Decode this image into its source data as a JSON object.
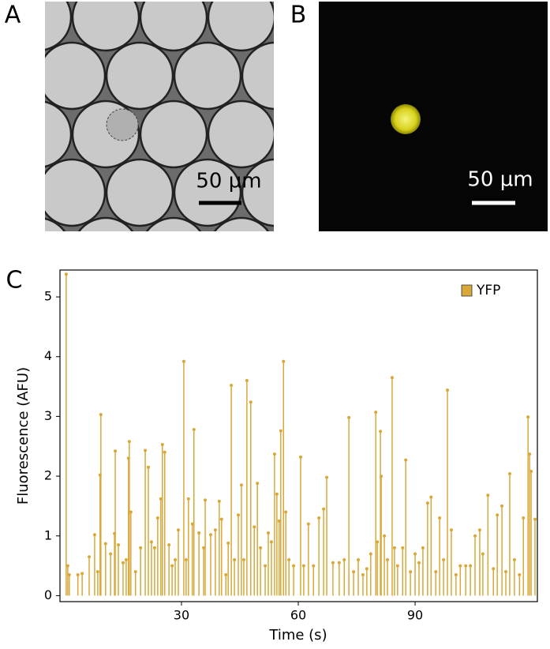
{
  "panels": [
    {
      "label": "A",
      "scale_bar": "50 µm"
    },
    {
      "label": "B",
      "scale_bar": "50 µm"
    },
    {
      "label": "C"
    }
  ],
  "chart_data": {
    "type": "stem",
    "x_label": "Time (s)",
    "y_label": "Fluorescence (AFU)",
    "xlim": [
      -1.2,
      121.4
    ],
    "ylim": [
      -0.1,
      5.45
    ],
    "xticks": [
      30,
      60,
      90
    ],
    "yticks": [
      0,
      1,
      2,
      3,
      4,
      5
    ],
    "legend": "upper right",
    "x": [
      0.4,
      0.8,
      1.2,
      3.4,
      4.5,
      6.3,
      7.7,
      8.5,
      9.1,
      9.3,
      10.5,
      11.8,
      12.8,
      13.0,
      13.8,
      15.0,
      15.8,
      16.4,
      16.6,
      17.0,
      18.2,
      19.5,
      20.7,
      21.5,
      22.3,
      23.1,
      23.9,
      24.7,
      25.1,
      25.7,
      26.8,
      27.6,
      28.4,
      29.2,
      30.6,
      31.2,
      31.8,
      32.8,
      33.2,
      34.5,
      35.7,
      36.1,
      37.5,
      38.7,
      39.7,
      40.3,
      41.4,
      42.0,
      42.8,
      43.6,
      44.6,
      45.4,
      46.0,
      46.8,
      47.8,
      48.7,
      49.5,
      50.3,
      51.5,
      52.3,
      53.1,
      53.9,
      54.5,
      55.1,
      55.5,
      56.2,
      56.8,
      57.6,
      58.8,
      60.6,
      61.4,
      62.6,
      63.9,
      65.3,
      66.5,
      67.3,
      68.9,
      70.5,
      71.8,
      73.0,
      74.2,
      75.4,
      76.6,
      77.6,
      78.6,
      79.9,
      80.3,
      81.1,
      81.3,
      82.1,
      82.9,
      84.1,
      84.7,
      85.5,
      86.8,
      87.6,
      88.8,
      90.0,
      91.0,
      92.0,
      93.2,
      94.1,
      95.3,
      96.3,
      97.3,
      98.3,
      99.3,
      100.5,
      101.6,
      103.0,
      104.2,
      105.4,
      106.6,
      107.4,
      108.7,
      110.1,
      111.1,
      112.3,
      113.3,
      114.3,
      115.5,
      116.8,
      117.8,
      119.0,
      119.4,
      119.8,
      120.8
    ],
    "series": [
      {
        "name": "YFP",
        "color": "#d9a83a",
        "values": [
          5.38,
          0.5,
          0.35,
          0.35,
          0.37,
          0.65,
          1.02,
          0.4,
          2.02,
          3.03,
          0.87,
          0.7,
          1.04,
          2.42,
          0.85,
          0.55,
          0.6,
          2.3,
          2.58,
          1.4,
          0.4,
          0.8,
          2.43,
          2.15,
          0.9,
          0.8,
          1.3,
          1.62,
          2.53,
          2.4,
          0.85,
          0.5,
          0.6,
          1.1,
          3.92,
          0.6,
          1.62,
          1.2,
          2.78,
          1.05,
          0.8,
          1.6,
          1.02,
          1.1,
          1.58,
          1.28,
          0.35,
          0.88,
          3.52,
          0.6,
          1.35,
          1.85,
          0.6,
          3.6,
          3.24,
          1.15,
          1.88,
          0.8,
          0.5,
          1.05,
          0.9,
          2.37,
          1.7,
          1.25,
          2.76,
          3.92,
          1.4,
          0.6,
          0.5,
          2.32,
          0.5,
          1.2,
          0.5,
          1.3,
          1.45,
          1.98,
          0.55,
          0.55,
          0.6,
          2.98,
          0.4,
          0.6,
          0.35,
          0.45,
          0.7,
          3.07,
          0.9,
          2.75,
          2.0,
          1.0,
          0.6,
          3.65,
          0.8,
          0.5,
          0.8,
          2.27,
          0.4,
          0.7,
          0.55,
          0.8,
          1.55,
          1.65,
          0.4,
          1.3,
          0.6,
          3.44,
          1.1,
          0.35,
          0.5,
          0.5,
          0.5,
          1.0,
          1.1,
          0.7,
          1.68,
          0.45,
          1.35,
          1.5,
          0.4,
          2.04,
          0.6,
          0.35,
          1.3,
          2.99,
          2.37,
          2.08,
          1.28
        ]
      }
    ]
  }
}
